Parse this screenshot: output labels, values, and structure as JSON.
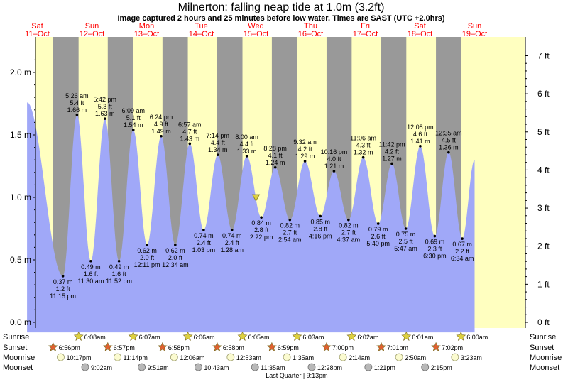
{
  "header": {
    "title": "Milnerton: falling  neap tide at 1.0m (3.2ft)",
    "subtitle": "Image captured 2 hours and 25 minutes before low water. Times are SAST (UTC +2.0hrs)"
  },
  "days": [
    {
      "name": "Sat",
      "date": "11–Oct"
    },
    {
      "name": "Sun",
      "date": "12–Oct"
    },
    {
      "name": "Mon",
      "date": "13–Oct"
    },
    {
      "name": "Tue",
      "date": "14–Oct"
    },
    {
      "name": "Wed",
      "date": "15–Oct"
    },
    {
      "name": "Thu",
      "date": "16–Oct"
    },
    {
      "name": "Fri",
      "date": "17–Oct"
    },
    {
      "name": "Sat",
      "date": "18–Oct"
    },
    {
      "name": "Sun",
      "date": "19–Oct"
    }
  ],
  "chart_data": {
    "type": "area",
    "x_unit": "hours since 00:00 Sat 11-Oct (SAST)",
    "ylim": [
      -0.08,
      2.23
    ],
    "y_left_ticks": [
      "0.0 m",
      "0.5 m",
      "1.0 m",
      "1.5 m",
      "2.0 m"
    ],
    "y_right_ticks": [
      "0 ft",
      "1 ft",
      "2 ft",
      "3 ft",
      "4 ft",
      "5 ft",
      "6 ft",
      "7 ft"
    ],
    "extremes": [
      {
        "t": 7.5,
        "h": 1.76,
        "type": "high",
        "label": false
      },
      {
        "t": 23.25,
        "h": 0.37,
        "type": "low",
        "m": "0.37 m",
        "ft": "1.2 ft",
        "time": "11:15 pm"
      },
      {
        "t": 29.43,
        "h": 1.66,
        "type": "high",
        "m": "1.66 m",
        "ft": "5.4 ft",
        "time": "5:26 am"
      },
      {
        "t": 35.5,
        "h": 0.49,
        "type": "low",
        "m": "0.49 m",
        "ft": "1.6 ft",
        "time": "11:30 am"
      },
      {
        "t": 41.7,
        "h": 1.63,
        "type": "high",
        "m": "1.63 m",
        "ft": "5.3 ft",
        "time": "5:42 pm"
      },
      {
        "t": 47.87,
        "h": 0.49,
        "type": "low",
        "m": "0.49 m",
        "ft": "1.6 ft",
        "time": "11:52 pm"
      },
      {
        "t": 54.15,
        "h": 1.54,
        "type": "high",
        "m": "1.54 m",
        "ft": "5.1 ft",
        "time": "6:09 am"
      },
      {
        "t": 60.18,
        "h": 0.62,
        "type": "low",
        "m": "0.62 m",
        "ft": "2.0 ft",
        "time": "12:11 pm"
      },
      {
        "t": 66.4,
        "h": 1.49,
        "type": "high",
        "m": "1.49 m",
        "ft": "4.9 ft",
        "time": "6:24 pm"
      },
      {
        "t": 72.57,
        "h": 0.62,
        "type": "low",
        "m": "0.62 m",
        "ft": "2.0 ft",
        "time": "12:34 am"
      },
      {
        "t": 78.95,
        "h": 1.43,
        "type": "high",
        "m": "1.43 m",
        "ft": "4.7 ft",
        "time": "6:57 am"
      },
      {
        "t": 85.05,
        "h": 0.74,
        "type": "low",
        "m": "0.74 m",
        "ft": "2.4 ft",
        "time": "1:03 pm"
      },
      {
        "t": 91.23,
        "h": 1.34,
        "type": "high",
        "m": "1.34 m",
        "ft": "4.4 ft",
        "time": "7:14 pm"
      },
      {
        "t": 97.47,
        "h": 0.74,
        "type": "low",
        "m": "0.74 m",
        "ft": "2.4 ft",
        "time": "1:28 am"
      },
      {
        "t": 104.0,
        "h": 1.33,
        "type": "high",
        "m": "1.33 m",
        "ft": "4.4 ft",
        "time": "8:00 am"
      },
      {
        "t": 110.37,
        "h": 0.84,
        "type": "low",
        "m": "0.84 m",
        "ft": "2.8 ft",
        "time": "2:22 pm"
      },
      {
        "t": 116.47,
        "h": 1.24,
        "type": "high",
        "m": "1.24 m",
        "ft": "4.1 ft",
        "time": "8:28 pm"
      },
      {
        "t": 122.9,
        "h": 0.82,
        "type": "low",
        "m": "0.82 m",
        "ft": "2.7 ft",
        "time": "2:54 am"
      },
      {
        "t": 129.53,
        "h": 1.29,
        "type": "high",
        "m": "1.29 m",
        "ft": "4.2 ft",
        "time": "9:32 am"
      },
      {
        "t": 136.27,
        "h": 0.85,
        "type": "low",
        "m": "0.85 m",
        "ft": "2.8 ft",
        "time": "4:16 pm"
      },
      {
        "t": 142.27,
        "h": 1.21,
        "type": "high",
        "m": "1.21 m",
        "ft": "4.0 ft",
        "time": "10:16 pm"
      },
      {
        "t": 148.62,
        "h": 0.82,
        "type": "low",
        "m": "0.82 m",
        "ft": "2.7 ft",
        "time": "4:37 am"
      },
      {
        "t": 155.1,
        "h": 1.32,
        "type": "high",
        "m": "1.32 m",
        "ft": "4.3 ft",
        "time": "11:06 am"
      },
      {
        "t": 161.67,
        "h": 0.79,
        "type": "low",
        "m": "0.79 m",
        "ft": "2.6 ft",
        "time": "5:40 pm"
      },
      {
        "t": 167.7,
        "h": 1.27,
        "type": "high",
        "m": "1.27 m",
        "ft": "4.2 ft",
        "time": "11:42 pm"
      },
      {
        "t": 173.78,
        "h": 0.75,
        "type": "low",
        "m": "0.75 m",
        "ft": "2.5 ft",
        "time": "5:47 am"
      },
      {
        "t": 180.13,
        "h": 1.41,
        "type": "high",
        "m": "1.41 m",
        "ft": "4.6 ft",
        "time": "12:08 pm"
      },
      {
        "t": 186.5,
        "h": 0.69,
        "type": "low",
        "m": "0.69 m",
        "ft": "2.3 ft",
        "time": "6:30 pm"
      },
      {
        "t": 192.58,
        "h": 1.36,
        "type": "high",
        "m": "1.36 m",
        "ft": "4.5 ft",
        "time": "12:35 am"
      },
      {
        "t": 198.57,
        "h": 0.67,
        "type": "low",
        "m": "0.67 m",
        "ft": "2.2 ft",
        "time": "6:34 am"
      },
      {
        "t": 204.0,
        "h": 1.3,
        "type": "high",
        "label": false
      }
    ],
    "current": {
      "t": 108.0,
      "h": 1.0
    }
  },
  "almanac": {
    "labels": {
      "sunrise": "Sunrise",
      "sunset": "Sunset",
      "moonrise": "Moonrise",
      "moonset": "Moonset"
    },
    "sunrise": [
      {
        "day": 1,
        "time": "6:08am"
      },
      {
        "day": 2,
        "time": "6:07am"
      },
      {
        "day": 3,
        "time": "6:06am"
      },
      {
        "day": 4,
        "time": "6:05am"
      },
      {
        "day": 5,
        "time": "6:03am"
      },
      {
        "day": 6,
        "time": "6:02am"
      },
      {
        "day": 7,
        "time": "6:01am"
      },
      {
        "day": 8,
        "time": "6:00am"
      }
    ],
    "sunset": [
      {
        "day": 0,
        "time": "6:56pm"
      },
      {
        "day": 1,
        "time": "6:57pm"
      },
      {
        "day": 2,
        "time": "6:58pm"
      },
      {
        "day": 3,
        "time": "6:58pm"
      },
      {
        "day": 4,
        "time": "6:59pm"
      },
      {
        "day": 5,
        "time": "7:00pm"
      },
      {
        "day": 6,
        "time": "7:01pm"
      },
      {
        "day": 7,
        "time": "7:02pm"
      }
    ],
    "moonrise": [
      {
        "day": 0,
        "time": "10:17pm"
      },
      {
        "day": 1,
        "time": "11:14pm"
      },
      {
        "day": 2,
        "time": "12:06am"
      },
      {
        "day": 3,
        "time": "12:53am"
      },
      {
        "day": 4,
        "time": "1:35am"
      },
      {
        "day": 5,
        "time": "2:14am"
      },
      {
        "day": 6,
        "time": "2:50am"
      },
      {
        "day": 7,
        "time": "3:23am"
      }
    ],
    "moonset": [
      {
        "day": 1,
        "time": "9:02am"
      },
      {
        "day": 2,
        "time": "9:51am"
      },
      {
        "day": 3,
        "time": "10:43am"
      },
      {
        "day": 4,
        "time": "11:35am"
      },
      {
        "day": 5,
        "time": "12:28pm"
      },
      {
        "day": 6,
        "time": "1:21pm"
      },
      {
        "day": 7,
        "time": "2:15pm"
      }
    ],
    "moon_phase": "Last Quarter | 9:13pm"
  },
  "colors": {
    "day_bg": "#ffffc0",
    "night_bg": "#999999",
    "water": "#a0a8f8",
    "day_label": "#ff0000",
    "sun_star": "#ddd040",
    "sunset_star": "#e06030",
    "moonrise_fill": "#fbfbd0",
    "moonset_fill": "#b8b8b8",
    "marker": "#ddd040"
  }
}
